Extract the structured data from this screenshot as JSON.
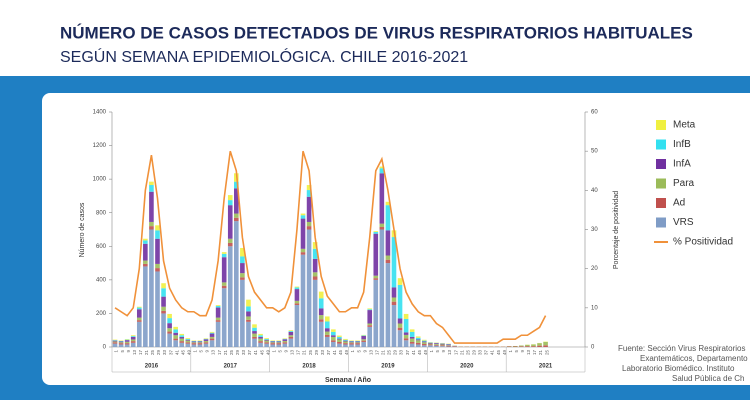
{
  "header": {
    "title": "NÚMERO DE CASOS DETECTADOS DE VIRUS RESPIRATORIOS HABITUALES",
    "subtitle": "SEGÚN SEMANA EPIDEMIOLÓGICA. CHILE 2016-2021"
  },
  "source": [
    "Fuente: Sección Virus Respiratorios",
    "Exantemáticos, Departamento",
    "Laboratorio Biomédico. Instituto",
    "Salud Pública de Ch"
  ],
  "chart_data": {
    "type": "bar",
    "stacked": true,
    "xlabel": "Semana / Año",
    "ylabel": "Número de casos",
    "y2label": "Porcentaje de positividad",
    "years": [
      "2016",
      "2017",
      "2018",
      "2019",
      "2020",
      "2021"
    ],
    "categories": [
      "1",
      "5",
      "9",
      "13",
      "17",
      "21",
      "25",
      "29",
      "33",
      "37",
      "41",
      "45",
      "49",
      "1",
      "5",
      "9",
      "13",
      "17",
      "21",
      "25",
      "29",
      "33",
      "37",
      "41",
      "45",
      "49",
      "1",
      "5",
      "9",
      "13",
      "17",
      "21",
      "25",
      "29",
      "33",
      "37",
      "41",
      "45",
      "49",
      "1",
      "5",
      "9",
      "13",
      "17",
      "21",
      "25",
      "29",
      "33",
      "37",
      "41",
      "45",
      "49",
      "1",
      "5",
      "9",
      "13",
      "17",
      "21",
      "25",
      "29",
      "33",
      "37",
      "41",
      "45",
      "49",
      "1",
      "5",
      "9",
      "13",
      "17",
      "21",
      "25"
    ],
    "ylim": [
      0,
      1400
    ],
    "yticks": [
      0,
      200,
      400,
      600,
      800,
      1000,
      1200,
      1400
    ],
    "y2lim": [
      0,
      60
    ],
    "y2ticks": [
      0,
      10,
      20,
      30,
      40,
      50,
      60
    ],
    "series": [
      {
        "name": "VRS",
        "color": "#7f9cc6",
        "values": [
          20,
          15,
          15,
          25,
          150,
          480,
          700,
          450,
          200,
          80,
          40,
          25,
          20,
          15,
          15,
          20,
          40,
          150,
          350,
          600,
          750,
          400,
          150,
          50,
          25,
          20,
          15,
          15,
          20,
          50,
          250,
          550,
          700,
          400,
          150,
          60,
          30,
          20,
          15,
          15,
          15,
          30,
          120,
          400,
          700,
          500,
          250,
          100,
          40,
          20,
          15,
          10,
          10,
          8,
          5,
          3,
          1,
          0,
          0,
          0,
          0,
          0,
          0,
          0,
          0,
          0,
          0,
          0,
          0,
          0,
          0,
          0
        ]
      },
      {
        "name": "Ad",
        "color": "#c0504d",
        "values": [
          8,
          8,
          8,
          10,
          10,
          15,
          20,
          20,
          15,
          12,
          10,
          10,
          8,
          8,
          8,
          8,
          10,
          10,
          15,
          20,
          20,
          15,
          12,
          10,
          10,
          8,
          8,
          8,
          8,
          10,
          10,
          15,
          20,
          20,
          15,
          12,
          10,
          10,
          8,
          8,
          8,
          8,
          10,
          10,
          15,
          20,
          20,
          15,
          12,
          10,
          10,
          8,
          5,
          5,
          5,
          5,
          3,
          2,
          2,
          2,
          2,
          2,
          2,
          2,
          2,
          3,
          3,
          4,
          5,
          5,
          8,
          10
        ]
      },
      {
        "name": "Para",
        "color": "#9bbb59",
        "values": [
          5,
          5,
          8,
          10,
          15,
          20,
          25,
          25,
          25,
          20,
          20,
          15,
          10,
          5,
          5,
          8,
          10,
          15,
          20,
          25,
          25,
          25,
          20,
          20,
          15,
          10,
          5,
          5,
          8,
          10,
          15,
          20,
          25,
          25,
          25,
          20,
          20,
          15,
          10,
          5,
          5,
          8,
          10,
          15,
          20,
          25,
          25,
          25,
          20,
          20,
          15,
          10,
          5,
          5,
          5,
          3,
          1,
          1,
          1,
          1,
          1,
          1,
          1,
          1,
          1,
          2,
          3,
          5,
          8,
          10,
          15,
          20
        ]
      },
      {
        "name": "InfA",
        "color": "#7030a0",
        "values": [
          5,
          5,
          10,
          15,
          50,
          100,
          180,
          150,
          60,
          30,
          15,
          10,
          5,
          5,
          5,
          10,
          20,
          60,
          150,
          200,
          150,
          60,
          30,
          15,
          10,
          5,
          5,
          5,
          10,
          20,
          70,
          180,
          150,
          80,
          40,
          20,
          10,
          5,
          5,
          5,
          5,
          20,
          80,
          250,
          300,
          150,
          60,
          30,
          15,
          10,
          5,
          5,
          5,
          5,
          5,
          5,
          2,
          0,
          0,
          0,
          0,
          0,
          0,
          0,
          0,
          0,
          0,
          0,
          0,
          0,
          0,
          0
        ]
      },
      {
        "name": "InfB",
        "color": "#33e0f0",
        "values": [
          3,
          3,
          3,
          5,
          10,
          20,
          40,
          50,
          50,
          30,
          20,
          10,
          5,
          3,
          3,
          3,
          5,
          10,
          20,
          30,
          40,
          40,
          30,
          20,
          10,
          5,
          3,
          3,
          3,
          5,
          10,
          20,
          40,
          60,
          60,
          40,
          20,
          10,
          5,
          3,
          3,
          3,
          5,
          10,
          30,
          150,
          300,
          200,
          80,
          30,
          10,
          5,
          2,
          2,
          2,
          2,
          1,
          0,
          0,
          0,
          0,
          0,
          0,
          0,
          0,
          0,
          0,
          0,
          0,
          0,
          0,
          0
        ]
      },
      {
        "name": "Meta",
        "color": "#f0f040",
        "values": [
          3,
          3,
          3,
          5,
          5,
          10,
          20,
          30,
          30,
          25,
          15,
          8,
          5,
          3,
          3,
          3,
          5,
          5,
          10,
          30,
          50,
          50,
          40,
          20,
          8,
          5,
          3,
          3,
          3,
          5,
          5,
          10,
          30,
          40,
          40,
          30,
          15,
          8,
          5,
          3,
          3,
          3,
          5,
          5,
          10,
          20,
          40,
          40,
          30,
          15,
          8,
          5,
          2,
          2,
          2,
          2,
          1,
          0,
          0,
          0,
          0,
          0,
          0,
          0,
          0,
          0,
          0,
          0,
          1,
          1,
          1,
          2
        ]
      },
      {
        "name": "% Positividad",
        "color": "#f0913a",
        "type": "line",
        "axis": "y2",
        "values": [
          10,
          9,
          8,
          10,
          20,
          40,
          49,
          38,
          22,
          15,
          12,
          10,
          9,
          9,
          8,
          8,
          12,
          22,
          38,
          50,
          45,
          28,
          18,
          14,
          12,
          10,
          10,
          9,
          10,
          14,
          30,
          50,
          45,
          28,
          18,
          13,
          11,
          9,
          9,
          10,
          10,
          14,
          28,
          45,
          48,
          40,
          30,
          20,
          14,
          11,
          9,
          8,
          8,
          6,
          5,
          3,
          1,
          1,
          1,
          1,
          1,
          1,
          1,
          1,
          2,
          2,
          2,
          3,
          3,
          4,
          5,
          8
        ]
      }
    ],
    "legend_order": [
      "Meta",
      "InfB",
      "InfA",
      "Para",
      "Ad",
      "VRS",
      "% Positividad"
    ]
  }
}
